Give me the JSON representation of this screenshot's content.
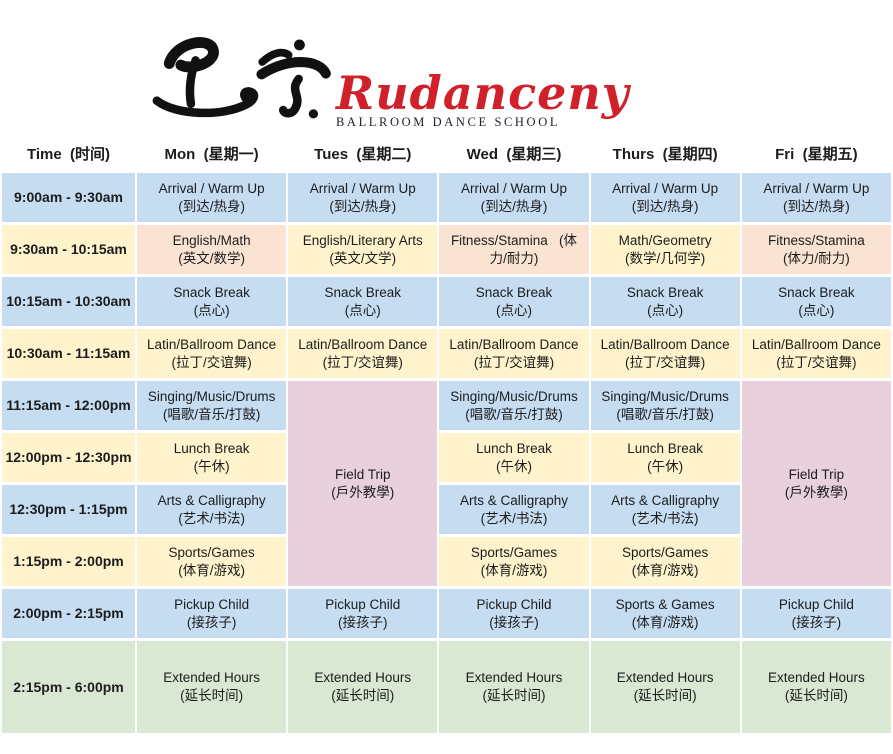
{
  "logo": {
    "brand_name": "Rudanceny",
    "brand_subtitle": "BALLROOM DANCE SCHOOL"
  },
  "colors": {
    "blue": "#C6DCF0",
    "cream": "#FFF3CD",
    "peach": "#FAE3D3",
    "pink": "#E8D0DC",
    "green": "#D9E8D2",
    "brand_red": "#D0212A",
    "text": "#1c1c1c"
  },
  "schedule": {
    "columns": [
      {
        "id": "time",
        "label": "Time  (时间)"
      },
      {
        "id": "mon",
        "label": "Mon  (星期一)"
      },
      {
        "id": "tues",
        "label": "Tues  (星期二)"
      },
      {
        "id": "wed",
        "label": "Wed  (星期三)"
      },
      {
        "id": "thurs",
        "label": "Thurs  (星期四)"
      },
      {
        "id": "fri",
        "label": "Fri  (星期五)"
      }
    ],
    "rows": [
      {
        "time": "9:00am - 9:30am",
        "cells": [
          {
            "col": "time",
            "lines": [
              "9:00am - 9:30am"
            ],
            "color": "blue"
          },
          {
            "col": "mon",
            "lines": [
              "Arrival / Warm Up",
              "(到达/热身)"
            ],
            "color": "blue"
          },
          {
            "col": "tues",
            "lines": [
              "Arrival / Warm Up",
              "(到达/热身)"
            ],
            "color": "blue"
          },
          {
            "col": "wed",
            "lines": [
              "Arrival / Warm Up",
              "(到达/热身)"
            ],
            "color": "blue"
          },
          {
            "col": "thurs",
            "lines": [
              "Arrival / Warm Up",
              "(到达/热身)"
            ],
            "color": "blue"
          },
          {
            "col": "fri",
            "lines": [
              "Arrival / Warm Up",
              "(到达/热身)"
            ],
            "color": "blue"
          }
        ]
      },
      {
        "time": "9:30am - 10:15am",
        "cells": [
          {
            "col": "time",
            "lines": [
              "9:30am - 10:15am"
            ],
            "color": "cream"
          },
          {
            "col": "mon",
            "lines": [
              "English/Math",
              "(英文/数学)"
            ],
            "color": "peach"
          },
          {
            "col": "tues",
            "lines": [
              "English/Literary Arts",
              "(英文/文学)"
            ],
            "color": "cream"
          },
          {
            "col": "wed",
            "lines": [
              "Fitness/Stamina   (体",
              "力/耐力)"
            ],
            "color": "peach"
          },
          {
            "col": "thurs",
            "lines": [
              "Math/Geometry",
              "(数学/几何学)"
            ],
            "color": "cream"
          },
          {
            "col": "fri",
            "lines": [
              "Fitness/Stamina",
              "(体力/耐力)"
            ],
            "color": "peach"
          }
        ]
      },
      {
        "time": "10:15am - 10:30am",
        "cells": [
          {
            "col": "time",
            "lines": [
              "10:15am - 10:30am"
            ],
            "color": "blue"
          },
          {
            "col": "mon",
            "lines": [
              "Snack Break",
              "(点心)"
            ],
            "color": "blue"
          },
          {
            "col": "tues",
            "lines": [
              "Snack Break",
              "(点心)"
            ],
            "color": "blue"
          },
          {
            "col": "wed",
            "lines": [
              "Snack Break",
              "(点心)"
            ],
            "color": "blue"
          },
          {
            "col": "thurs",
            "lines": [
              "Snack Break",
              "(点心)"
            ],
            "color": "blue"
          },
          {
            "col": "fri",
            "lines": [
              "Snack Break",
              "(点心)"
            ],
            "color": "blue"
          }
        ]
      },
      {
        "time": "10:30am - 11:15am",
        "cells": [
          {
            "col": "time",
            "lines": [
              "10:30am - 11:15am"
            ],
            "color": "cream"
          },
          {
            "col": "mon",
            "lines": [
              "Latin/Ballroom Dance",
              "(拉丁/交谊舞)"
            ],
            "color": "cream"
          },
          {
            "col": "tues",
            "lines": [
              "Latin/Ballroom Dance",
              "(拉丁/交谊舞)"
            ],
            "color": "cream"
          },
          {
            "col": "wed",
            "lines": [
              "Latin/Ballroom Dance",
              "(拉丁/交谊舞)"
            ],
            "color": "cream"
          },
          {
            "col": "thurs",
            "lines": [
              "Latin/Ballroom Dance",
              "(拉丁/交谊舞)"
            ],
            "color": "cream"
          },
          {
            "col": "fri",
            "lines": [
              "Latin/Ballroom Dance",
              "(拉丁/交谊舞)"
            ],
            "color": "cream"
          }
        ]
      },
      {
        "time": "11:15am - 12:00pm",
        "cells": [
          {
            "col": "time",
            "lines": [
              "11:15am - 12:00pm"
            ],
            "color": "blue"
          },
          {
            "col": "mon",
            "lines": [
              "Singing/Music/Drums",
              "(唱歌/音乐/打鼓)"
            ],
            "color": "blue"
          },
          {
            "col": "tues",
            "lines": [
              "Field Trip",
              "(戶外教學)"
            ],
            "color": "pink",
            "rowspan": 4
          },
          {
            "col": "wed",
            "lines": [
              "Singing/Music/Drums",
              "(唱歌/音乐/打鼓)"
            ],
            "color": "blue"
          },
          {
            "col": "thurs",
            "lines": [
              "Singing/Music/Drums",
              "(唱歌/音乐/打鼓)"
            ],
            "color": "blue"
          },
          {
            "col": "fri",
            "lines": [
              "Field Trip",
              "(戶外教學)"
            ],
            "color": "pink",
            "rowspan": 4
          }
        ]
      },
      {
        "time": "12:00pm - 12:30pm",
        "cells": [
          {
            "col": "time",
            "lines": [
              "12:00pm - 12:30pm"
            ],
            "color": "cream"
          },
          {
            "col": "mon",
            "lines": [
              "Lunch Break",
              "(午休)"
            ],
            "color": "cream"
          },
          {
            "col": "wed",
            "lines": [
              "Lunch Break",
              "(午休)"
            ],
            "color": "cream"
          },
          {
            "col": "thurs",
            "lines": [
              "Lunch Break",
              "(午休)"
            ],
            "color": "cream"
          }
        ]
      },
      {
        "time": "12:30pm - 1:15pm",
        "cells": [
          {
            "col": "time",
            "lines": [
              "12:30pm - 1:15pm"
            ],
            "color": "blue"
          },
          {
            "col": "mon",
            "lines": [
              "Arts & Calligraphy",
              "(艺术/书法)"
            ],
            "color": "blue"
          },
          {
            "col": "wed",
            "lines": [
              "Arts & Calligraphy",
              "(艺术/书法)"
            ],
            "color": "blue"
          },
          {
            "col": "thurs",
            "lines": [
              "Arts & Calligraphy",
              "(艺术/书法)"
            ],
            "color": "blue"
          }
        ]
      },
      {
        "time": "1:15pm - 2:00pm",
        "cells": [
          {
            "col": "time",
            "lines": [
              "1:15pm - 2:00pm"
            ],
            "color": "cream"
          },
          {
            "col": "mon",
            "lines": [
              "Sports/Games",
              "(体育/游戏)"
            ],
            "color": "cream"
          },
          {
            "col": "wed",
            "lines": [
              "Sports/Games",
              "(体育/游戏)"
            ],
            "color": "cream"
          },
          {
            "col": "thurs",
            "lines": [
              "Sports/Games",
              "(体育/游戏)"
            ],
            "color": "cream"
          }
        ]
      },
      {
        "time": "2:00pm - 2:15pm",
        "cells": [
          {
            "col": "time",
            "lines": [
              "2:00pm - 2:15pm"
            ],
            "color": "blue"
          },
          {
            "col": "mon",
            "lines": [
              "Pickup Child",
              "(接孩子)"
            ],
            "color": "blue"
          },
          {
            "col": "tues",
            "lines": [
              "Pickup Child",
              "(接孩子)"
            ],
            "color": "blue"
          },
          {
            "col": "wed",
            "lines": [
              "Pickup Child",
              "(接孩子)"
            ],
            "color": "blue"
          },
          {
            "col": "thurs",
            "lines": [
              "Sports & Games",
              "(体育/游戏)"
            ],
            "color": "blue"
          },
          {
            "col": "fri",
            "lines": [
              "Pickup Child",
              "(接孩子)"
            ],
            "color": "blue"
          }
        ]
      },
      {
        "time": "2:15pm - 6:00pm",
        "tall": true,
        "cells": [
          {
            "col": "time",
            "lines": [
              "2:15pm - 6:00pm"
            ],
            "color": "green"
          },
          {
            "col": "mon",
            "lines": [
              "Extended Hours",
              "(延长时间)"
            ],
            "color": "green"
          },
          {
            "col": "tues",
            "lines": [
              "Extended Hours",
              "(延长时间)"
            ],
            "color": "green"
          },
          {
            "col": "wed",
            "lines": [
              "Extended Hours",
              "(延长时间)"
            ],
            "color": "green"
          },
          {
            "col": "thurs",
            "lines": [
              "Extended Hours",
              "(延长时间)"
            ],
            "color": "green"
          },
          {
            "col": "fri",
            "lines": [
              "Extended Hours",
              "(延长时间)"
            ],
            "color": "green"
          }
        ]
      }
    ]
  }
}
